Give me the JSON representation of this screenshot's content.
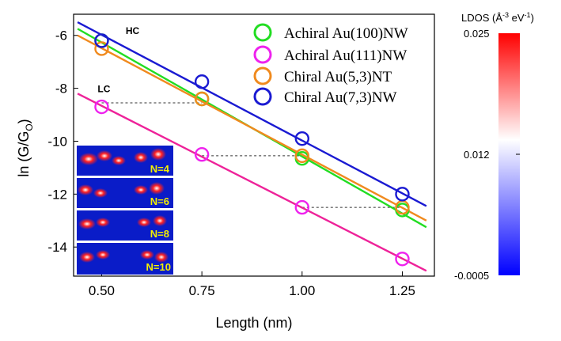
{
  "chart_data": {
    "type": "scatter",
    "xlabel": "Length (nm)",
    "ylabel_main": "ln (G/G",
    "ylabel_sub": "O",
    "ylabel_close": ")",
    "xlim": [
      0.43,
      1.33
    ],
    "ylim": [
      -15.1,
      -5.2
    ],
    "x_ticks": [
      0.5,
      0.75,
      1.0,
      1.25
    ],
    "x_tick_labels": [
      "0.50",
      "0.75",
      "1.00",
      "1.25"
    ],
    "y_ticks": [
      -6,
      -8,
      -10,
      -12,
      -14
    ],
    "y_tick_labels": [
      "-6",
      "-8",
      "-10",
      "-12",
      "-14"
    ],
    "series": [
      {
        "name": "Achiral Au(100)NW",
        "color": "#22dd22",
        "x": [
          0.5,
          0.75,
          1.0,
          1.25
        ],
        "y": [
          -6.2,
          -8.4,
          -10.65,
          -12.6
        ],
        "fit": [
          [
            0.44,
            -5.75
          ],
          [
            1.31,
            -13.25
          ]
        ]
      },
      {
        "name": "Achiral Au(111)NW",
        "color": "#ee22ee",
        "x": [
          0.5,
          0.75,
          1.0,
          1.25
        ],
        "y": [
          -8.7,
          -10.5,
          -12.5,
          -14.45
        ],
        "fit": [
          [
            0.44,
            -8.2
          ],
          [
            1.31,
            -14.9
          ]
        ]
      },
      {
        "name": "Chiral Au(5,3)NT",
        "color": "#f08a1e",
        "x": [
          0.5,
          0.75,
          1.0,
          1.25
        ],
        "y": [
          -6.5,
          -8.4,
          -10.55,
          -12.5
        ],
        "fit": [
          [
            0.44,
            -6.0
          ],
          [
            1.31,
            -13.0
          ]
        ]
      },
      {
        "name": "Chiral Au(7,3)NW",
        "color": "#1a1ad2",
        "x": [
          0.5,
          0.75,
          1.0,
          1.25
        ],
        "y": [
          -6.2,
          -7.75,
          -9.9,
          -12.0
        ],
        "fit": [
          [
            0.44,
            -5.5
          ],
          [
            1.31,
            -12.45
          ]
        ]
      }
    ],
    "fit_line_colors": [
      "#22dd22",
      "#ee2299",
      "#f08a1e",
      "#1a1ad2"
    ],
    "dashed_lines": [
      {
        "x1": 0.5,
        "x2": 0.75,
        "y": -8.55
      },
      {
        "x1": 0.75,
        "x2": 1.0,
        "y": -10.55
      },
      {
        "x1": 1.0,
        "x2": 1.25,
        "y": -12.5
      }
    ],
    "annotations": [
      {
        "text": "HC",
        "x": 0.56,
        "y": -5.95
      },
      {
        "text": "LC",
        "x": 0.49,
        "y": -8.15
      }
    ],
    "insets": [
      "N=4",
      "N=6",
      "N=8",
      "N=10"
    ],
    "colorbar": {
      "title": "LDOS (Å",
      "title_sup": "-3",
      "title_tail": " eV",
      "title_sup2": "-1",
      "title_close": ")",
      "max_label": "0.025",
      "mid_label": "0.012",
      "min_label": "-0.0005",
      "colors": [
        "#ff0000",
        "#ffffff",
        "#0000ff"
      ]
    },
    "legend_position": "top-right"
  }
}
